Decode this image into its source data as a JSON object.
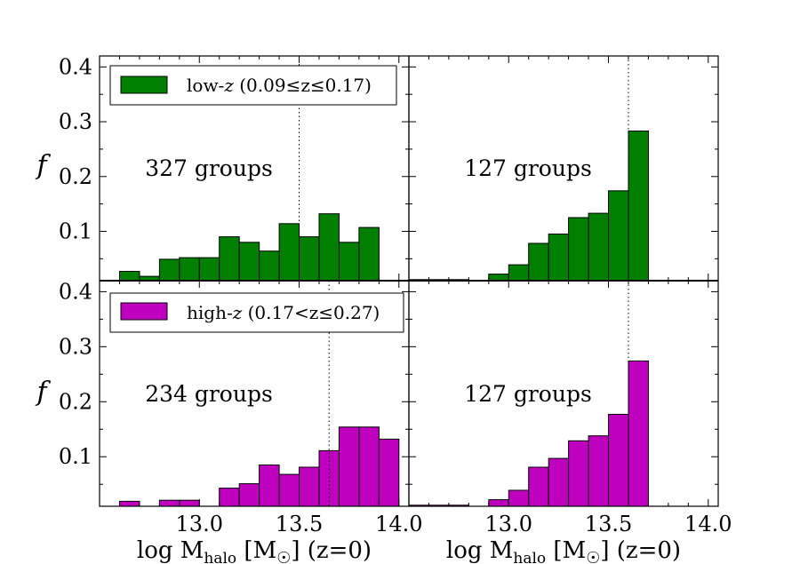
{
  "chart_data": [
    {
      "type": "bar",
      "panel": "top-left",
      "annotation": "327 groups",
      "legend": {
        "label": "low-z (0.09≤z≤0.17)",
        "color": "#007f00",
        "placement": "upper-left"
      },
      "ylabel": "f",
      "xlabel": "",
      "xlim": [
        12.5,
        14.05
      ],
      "ylim": [
        0.01,
        0.42
      ],
      "yticks": [
        "0.1",
        "0.2",
        "0.3",
        "0.4"
      ],
      "xticks": [
        "13.0",
        "13.5",
        "14.0"
      ],
      "vline": 13.5,
      "bin_width": 0.1,
      "bins": [
        {
          "x": 12.65,
          "value": 0.027
        },
        {
          "x": 12.75,
          "value": 0.018
        },
        {
          "x": 12.85,
          "value": 0.049
        },
        {
          "x": 12.95,
          "value": 0.052
        },
        {
          "x": 13.05,
          "value": 0.052
        },
        {
          "x": 13.15,
          "value": 0.09
        },
        {
          "x": 13.25,
          "value": 0.08
        },
        {
          "x": 13.35,
          "value": 0.064
        },
        {
          "x": 13.45,
          "value": 0.114
        },
        {
          "x": 13.55,
          "value": 0.09
        },
        {
          "x": 13.65,
          "value": 0.132
        },
        {
          "x": 13.75,
          "value": 0.08
        },
        {
          "x": 13.85,
          "value": 0.107
        }
      ]
    },
    {
      "type": "bar",
      "panel": "top-right",
      "annotation": "127 groups",
      "xlim": [
        12.5,
        14.05
      ],
      "ylim": [
        0.01,
        0.42
      ],
      "vline": 13.6,
      "bin_width": 0.1,
      "bins": [
        {
          "x": 12.55,
          "value": 0.012
        },
        {
          "x": 12.65,
          "value": 0.012
        },
        {
          "x": 12.75,
          "value": 0.012
        },
        {
          "x": 12.95,
          "value": 0.022
        },
        {
          "x": 13.05,
          "value": 0.039
        },
        {
          "x": 13.15,
          "value": 0.078
        },
        {
          "x": 13.25,
          "value": 0.095
        },
        {
          "x": 13.35,
          "value": 0.125
        },
        {
          "x": 13.45,
          "value": 0.133
        },
        {
          "x": 13.55,
          "value": 0.174
        },
        {
          "x": 13.65,
          "value": 0.283
        }
      ]
    },
    {
      "type": "bar",
      "panel": "bottom-left",
      "annotation": "234 groups",
      "legend": {
        "label": "high-z (0.17<z≤0.27)",
        "color": "#bf00bf",
        "placement": "upper-left"
      },
      "ylabel": "f",
      "xlabel": "log M_halo [M_☉] (z=0)",
      "xlim": [
        12.5,
        14.05
      ],
      "ylim": [
        0.01,
        0.42
      ],
      "yticks": [
        "0.1",
        "0.2",
        "0.3",
        "0.4"
      ],
      "xticks": [
        "13.0",
        "13.5",
        "14.0"
      ],
      "vline": 13.65,
      "bin_width": 0.1,
      "bins": [
        {
          "x": 12.65,
          "value": 0.019
        },
        {
          "x": 12.85,
          "value": 0.021
        },
        {
          "x": 12.95,
          "value": 0.021
        },
        {
          "x": 13.05,
          "value": 0.004
        },
        {
          "x": 13.15,
          "value": 0.043
        },
        {
          "x": 13.25,
          "value": 0.051
        },
        {
          "x": 13.35,
          "value": 0.085
        },
        {
          "x": 13.45,
          "value": 0.068
        },
        {
          "x": 13.55,
          "value": 0.081
        },
        {
          "x": 13.65,
          "value": 0.111
        },
        {
          "x": 13.75,
          "value": 0.154
        },
        {
          "x": 13.85,
          "value": 0.154
        },
        {
          "x": 13.95,
          "value": 0.132
        }
      ]
    },
    {
      "type": "bar",
      "panel": "bottom-right",
      "annotation": "127 groups",
      "xlabel": "log M_halo [M_☉] (z=0)",
      "xlim": [
        12.5,
        14.05
      ],
      "ylim": [
        0.01,
        0.42
      ],
      "xticks": [
        "13.0",
        "13.5",
        "14.0"
      ],
      "vline": 13.6,
      "bin_width": 0.1,
      "bins": [
        {
          "x": 12.55,
          "value": 0.012
        },
        {
          "x": 12.65,
          "value": 0.012
        },
        {
          "x": 12.75,
          "value": 0.012
        },
        {
          "x": 12.95,
          "value": 0.022
        },
        {
          "x": 13.05,
          "value": 0.039
        },
        {
          "x": 13.15,
          "value": 0.081
        },
        {
          "x": 13.25,
          "value": 0.097
        },
        {
          "x": 13.35,
          "value": 0.129
        },
        {
          "x": 13.45,
          "value": 0.138
        },
        {
          "x": 13.55,
          "value": 0.177
        },
        {
          "x": 13.65,
          "value": 0.274
        }
      ]
    }
  ],
  "labels": {
    "ylabel": "f",
    "xlabel_prefix": "log M",
    "xlabel_sub": "halo",
    "xlabel_mid": " [M",
    "xlabel_sun": "☉",
    "xlabel_suffix": "] (z=0)",
    "top_note": "327 groups",
    "top_right_note": "127 groups",
    "bottom_note": "234 groups",
    "bottom_right_note": "127 groups",
    "legend_low": "low-",
    "legend_low_z": "z",
    "legend_low_range": " (0.09≤z≤0.17)",
    "legend_high": "high-",
    "legend_high_z": "z",
    "legend_high_range": " (0.17<z≤0.27)"
  }
}
